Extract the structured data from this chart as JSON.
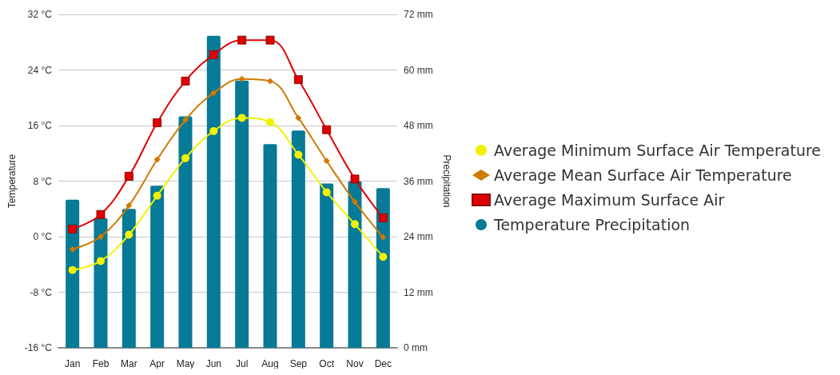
{
  "chart_data": {
    "type": "bar",
    "categories": [
      "Jan",
      "Feb",
      "Mar",
      "Apr",
      "May",
      "Jun",
      "Jul",
      "Aug",
      "Sep",
      "Oct",
      "Nov",
      "Dec"
    ],
    "ylabel": "Temperature",
    "y2label": "Precipitation",
    "ylim": [
      -16,
      32
    ],
    "yticks": [
      {
        "value": -16,
        "label": "-16 °C"
      },
      {
        "value": -8,
        "label": "-8 °C"
      },
      {
        "value": 0,
        "label": "0 °C"
      },
      {
        "value": 8,
        "label": "8 °C"
      },
      {
        "value": 16,
        "label": "16 °C"
      },
      {
        "value": 24,
        "label": "24 °C"
      },
      {
        "value": 32,
        "label": "32 °C"
      }
    ],
    "y2lim": [
      0,
      72
    ],
    "y2ticks": [
      {
        "value": 0,
        "label": "0 mm"
      },
      {
        "value": 12,
        "label": "12 mm"
      },
      {
        "value": 24,
        "label": "24 mm"
      },
      {
        "value": 36,
        "label": "36 mm"
      },
      {
        "value": 48,
        "label": "48 mm"
      },
      {
        "value": 60,
        "label": "60 mm"
      },
      {
        "value": 72,
        "label": "72 mm"
      }
    ],
    "grid": "y",
    "legend": "right",
    "series": [
      {
        "name": "Average Minimum Surface Air Temperature",
        "type": "line",
        "marker": "circle",
        "color": "#f2f200",
        "values": [
          -4.8,
          -3.5,
          0.3,
          5.9,
          11.3,
          15.2,
          17.1,
          16.5,
          11.8,
          6.4,
          1.8,
          -2.9
        ]
      },
      {
        "name": "Average Mean Surface Air Temperature",
        "type": "line",
        "marker": "diamond",
        "color": "#d07a00",
        "values": [
          -1.8,
          0,
          4.5,
          11.1,
          16.8,
          20.7,
          22.7,
          22.4,
          17.1,
          10.9,
          5.0,
          -0.1
        ]
      },
      {
        "name": "Average Maximum Surface Air",
        "type": "line",
        "marker": "square",
        "color": "#e00000",
        "values": [
          1.1,
          3.2,
          8.7,
          16.4,
          22.4,
          26.2,
          28.3,
          28.3,
          22.6,
          15.4,
          8.3,
          2.7
        ]
      },
      {
        "name": "Temperature Precipitation",
        "axis": "y2",
        "marker": "circle",
        "color": "#067a96",
        "values": [
          32,
          28,
          30,
          35,
          50,
          67.4,
          57.7,
          44,
          46.9,
          35.5,
          36,
          34.5
        ]
      }
    ]
  }
}
